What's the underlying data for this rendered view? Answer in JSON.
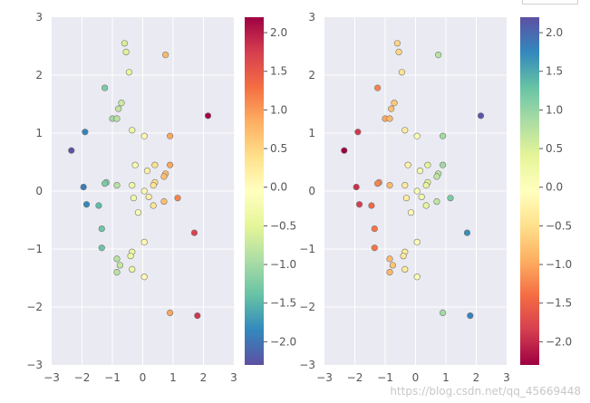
{
  "colors": {
    "panel_bg": "#EAEAF2",
    "grid": "#FFFFFF",
    "marker_edge": "#777777",
    "spectral": [
      "#9E0142",
      "#D53E4F",
      "#F46D43",
      "#FDAE61",
      "#FEE08B",
      "#FFFFBF",
      "#E6F598",
      "#ABDDA4",
      "#66C2A5",
      "#3288BD",
      "#5E4FA2"
    ]
  },
  "watermark": "https://blog.csdn.net/qq_45669448",
  "chart_data": [
    {
      "type": "scatter",
      "title": "",
      "xlabel": "",
      "ylabel": "",
      "xlim": [
        -3,
        3
      ],
      "ylim": [
        -3,
        3
      ],
      "xticks": [
        "−3",
        "−2",
        "−1",
        "0",
        "1",
        "2",
        "3"
      ],
      "yticks": [
        "−3",
        "−2",
        "−1",
        "0",
        "1",
        "2",
        "3"
      ],
      "grid": true,
      "colormap": "Spectral",
      "colorbar": {
        "range": [
          -2.3,
          2.2
        ],
        "ticks": [
          "2.0",
          "1.5",
          "1.0",
          "0.5",
          "0.0",
          "−0.5",
          "−1.0",
          "−1.5",
          "−2.0"
        ],
        "tick_values": [
          2.0,
          1.5,
          1.0,
          0.5,
          0.0,
          -0.5,
          -1.0,
          -1.5,
          -2.0
        ]
      },
      "color_by": "x"
    },
    {
      "type": "scatter",
      "title": "",
      "xlabel": "",
      "ylabel": "",
      "xlim": [
        -3,
        3
      ],
      "ylim": [
        -3,
        3
      ],
      "xticks": [
        "−3",
        "−2",
        "−1",
        "0",
        "1",
        "2",
        "3"
      ],
      "yticks": [
        "−3",
        "−2",
        "−1",
        "0",
        "1",
        "2",
        "3"
      ],
      "grid": true,
      "colormap": "Spectral_r",
      "colorbar": {
        "range": [
          -2.3,
          2.2
        ],
        "ticks": [
          "2.0",
          "1.5",
          "1.0",
          "0.5",
          "0.0",
          "−0.5",
          "−1.0",
          "−1.5",
          "−2.0"
        ],
        "tick_values": [
          2.0,
          1.5,
          1.0,
          0.5,
          0.0,
          -0.5,
          -1.0,
          -1.5,
          -2.0
        ]
      },
      "color_by": "x"
    }
  ],
  "points": [
    {
      "x": -0.6,
      "y": 2.55
    },
    {
      "x": -0.55,
      "y": 2.4
    },
    {
      "x": 0.75,
      "y": 2.35
    },
    {
      "x": -0.45,
      "y": 2.05
    },
    {
      "x": -1.25,
      "y": 1.78
    },
    {
      "x": -0.7,
      "y": 1.52
    },
    {
      "x": -0.8,
      "y": 1.42
    },
    {
      "x": -1.0,
      "y": 1.25
    },
    {
      "x": -0.85,
      "y": 1.25
    },
    {
      "x": 2.15,
      "y": 1.3
    },
    {
      "x": -1.9,
      "y": 1.02
    },
    {
      "x": -0.35,
      "y": 1.05
    },
    {
      "x": 0.05,
      "y": 0.95
    },
    {
      "x": 0.9,
      "y": 0.95
    },
    {
      "x": -2.35,
      "y": 0.7
    },
    {
      "x": -0.25,
      "y": 0.45
    },
    {
      "x": 0.4,
      "y": 0.45
    },
    {
      "x": 0.9,
      "y": 0.45
    },
    {
      "x": 0.15,
      "y": 0.35
    },
    {
      "x": 0.75,
      "y": 0.3
    },
    {
      "x": 0.7,
      "y": 0.25
    },
    {
      "x": 0.4,
      "y": 0.15
    },
    {
      "x": -1.2,
      "y": 0.15
    },
    {
      "x": -1.25,
      "y": 0.13
    },
    {
      "x": 0.35,
      "y": 0.1
    },
    {
      "x": -0.85,
      "y": 0.1
    },
    {
      "x": -0.35,
      "y": 0.1
    },
    {
      "x": -1.95,
      "y": 0.07
    },
    {
      "x": 0.05,
      "y": 0.0
    },
    {
      "x": 0.2,
      "y": -0.1
    },
    {
      "x": -0.3,
      "y": -0.12
    },
    {
      "x": 1.15,
      "y": -0.12
    },
    {
      "x": 0.7,
      "y": -0.18
    },
    {
      "x": -1.85,
      "y": -0.23
    },
    {
      "x": -1.45,
      "y": -0.25
    },
    {
      "x": 0.35,
      "y": -0.25
    },
    {
      "x": -0.15,
      "y": -0.37
    },
    {
      "x": -1.35,
      "y": -0.65
    },
    {
      "x": 1.7,
      "y": -0.72
    },
    {
      "x": 0.05,
      "y": -0.88
    },
    {
      "x": -1.35,
      "y": -0.98
    },
    {
      "x": -0.35,
      "y": -1.05
    },
    {
      "x": -0.4,
      "y": -1.12
    },
    {
      "x": -0.85,
      "y": -1.17
    },
    {
      "x": -0.75,
      "y": -1.28
    },
    {
      "x": -0.35,
      "y": -1.35
    },
    {
      "x": -0.85,
      "y": -1.4
    },
    {
      "x": 0.05,
      "y": -1.48
    },
    {
      "x": 0.9,
      "y": -2.1
    },
    {
      "x": 1.8,
      "y": -2.15
    }
  ]
}
